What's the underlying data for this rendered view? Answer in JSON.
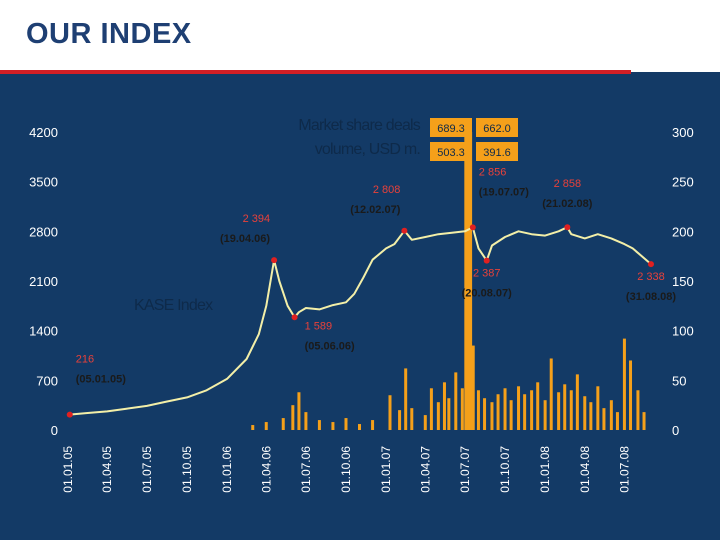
{
  "page": {
    "title": "OUR INDEX"
  },
  "colors": {
    "background": "#133a66",
    "index_line": "#f3efa8",
    "volume_bars": "#f5a01a",
    "marker": "#e02020",
    "annotation_text": "#e8413a",
    "axis_text": "#ffffff",
    "title_text": "#1e3f73",
    "title_rule": "#d21f26"
  },
  "chart_data": {
    "type": "line",
    "title": "",
    "series": [
      {
        "name": "KASE Index",
        "axis": "left",
        "type": "line"
      },
      {
        "name": "Market share deals volume, USD m.",
        "axis": "right",
        "type": "bar"
      }
    ],
    "series_labels": {
      "index": "KASE Index",
      "volume_line1": "Market share deals",
      "volume_line2": "volume, USD m."
    },
    "y_left": {
      "ticks": [
        "0",
        "700",
        "1400",
        "2100",
        "2800",
        "3500",
        "4200"
      ],
      "range": [
        0,
        4200
      ]
    },
    "y_right": {
      "ticks": [
        "0",
        "50",
        "100",
        "150",
        "200",
        "250",
        "300"
      ],
      "range": [
        0,
        300
      ]
    },
    "x_ticks": [
      "01.01.05",
      "01.04.05",
      "01.07.05",
      "01.10.05",
      "01.01.06",
      "01.04.06",
      "01.07.06",
      "01.10.06",
      "01.01.07",
      "01.04.07",
      "01.07.07",
      "01.10.07",
      "01.01.08",
      "01.04.08",
      "01.07.08"
    ],
    "index_points": [
      [
        "01.01.05",
        216
      ],
      [
        "15.02.05",
        240
      ],
      [
        "01.04.05",
        262
      ],
      [
        "15.05.05",
        300
      ],
      [
        "01.07.05",
        340
      ],
      [
        "15.08.05",
        400
      ],
      [
        "01.10.05",
        460
      ],
      [
        "15.11.05",
        560
      ],
      [
        "01.01.06",
        720
      ],
      [
        "15.02.06",
        1000
      ],
      [
        "15.03.06",
        1350
      ],
      [
        "01.04.06",
        1750
      ],
      [
        "19.04.06",
        2394
      ],
      [
        "01.05.06",
        2100
      ],
      [
        "20.05.06",
        1750
      ],
      [
        "05.06.06",
        1589
      ],
      [
        "15.06.06",
        1660
      ],
      [
        "01.07.06",
        1720
      ],
      [
        "01.08.06",
        1700
      ],
      [
        "01.09.06",
        1760
      ],
      [
        "01.10.06",
        1800
      ],
      [
        "20.10.06",
        1920
      ],
      [
        "10.11.06",
        2150
      ],
      [
        "01.12.06",
        2400
      ],
      [
        "01.01.07",
        2560
      ],
      [
        "20.01.07",
        2620
      ],
      [
        "12.02.07",
        2808
      ],
      [
        "01.03.07",
        2680
      ],
      [
        "01.04.07",
        2720
      ],
      [
        "01.05.07",
        2760
      ],
      [
        "01.06.07",
        2780
      ],
      [
        "01.07.07",
        2800
      ],
      [
        "19.07.07",
        2856
      ],
      [
        "01.08.07",
        2560
      ],
      [
        "20.08.07",
        2387
      ],
      [
        "01.09.07",
        2600
      ],
      [
        "01.10.07",
        2720
      ],
      [
        "01.11.07",
        2800
      ],
      [
        "01.12.07",
        2760
      ],
      [
        "01.01.08",
        2740
      ],
      [
        "01.02.08",
        2800
      ],
      [
        "21.02.08",
        2858
      ],
      [
        "01.03.08",
        2760
      ],
      [
        "01.04.08",
        2700
      ],
      [
        "01.05.08",
        2760
      ],
      [
        "01.06.08",
        2700
      ],
      [
        "01.07.08",
        2620
      ],
      [
        "20.07.08",
        2560
      ],
      [
        "31.08.08",
        2338
      ]
    ],
    "annotations": [
      {
        "value": "216",
        "date": "(05.01.05)",
        "x": "05.01.05",
        "y": 216,
        "position": "above-right"
      },
      {
        "value": "2 394",
        "date": "(19.04.06)",
        "x": "19.04.06",
        "y": 2394,
        "position": "above-left"
      },
      {
        "value": "1 589",
        "date": "(05.06.06)",
        "x": "05.06.06",
        "y": 1589,
        "position": "below-right"
      },
      {
        "value": "2 808",
        "date": "(12.02.07)",
        "x": "12.02.07",
        "y": 2808,
        "position": "above-left"
      },
      {
        "value": "2 856",
        "date": "(19.07.07)",
        "x": "19.07.07",
        "y": 2856,
        "position": "above-right"
      },
      {
        "value": "2 387",
        "date": "(20.08.07)",
        "x": "20.08.07",
        "y": 2387,
        "position": "below"
      },
      {
        "value": "2 858",
        "date": "(21.02.08)",
        "x": "21.02.08",
        "y": 2858,
        "position": "above"
      },
      {
        "value": "2 338",
        "date": "(31.08.08)",
        "x": "31.08.08",
        "y": 2338,
        "position": "below"
      }
    ],
    "volume_callouts": [
      {
        "value": "689.3",
        "date": "07.07"
      },
      {
        "value": "662.0",
        "date": "07.07"
      },
      {
        "value": "503.3",
        "date": "07.07"
      },
      {
        "value": "391.6",
        "date": "07.07"
      }
    ],
    "volume_bars": [
      [
        "01.03.06",
        5
      ],
      [
        "01.04.06",
        8
      ],
      [
        "10.05.06",
        12
      ],
      [
        "01.06.06",
        25
      ],
      [
        "15.06.06",
        38
      ],
      [
        "01.07.06",
        18
      ],
      [
        "01.08.06",
        10
      ],
      [
        "01.09.06",
        8
      ],
      [
        "01.10.06",
        12
      ],
      [
        "01.11.06",
        6
      ],
      [
        "01.12.06",
        10
      ],
      [
        "10.01.07",
        35
      ],
      [
        "01.02.07",
        20
      ],
      [
        "15.02.07",
        62
      ],
      [
        "01.03.07",
        22
      ],
      [
        "01.04.07",
        15
      ],
      [
        "15.04.07",
        42
      ],
      [
        "01.05.07",
        28
      ],
      [
        "15.05.07",
        48
      ],
      [
        "25.05.07",
        32
      ],
      [
        "10.06.07",
        58
      ],
      [
        "25.06.07",
        42
      ],
      [
        "03.07.07",
        300
      ],
      [
        "05.07.07",
        300
      ],
      [
        "10.07.07",
        300
      ],
      [
        "14.07.07",
        300
      ],
      [
        "20.07.07",
        85
      ],
      [
        "01.08.07",
        40
      ],
      [
        "15.08.07",
        32
      ],
      [
        "01.09.07",
        28
      ],
      [
        "15.09.07",
        36
      ],
      [
        "01.10.07",
        42
      ],
      [
        "15.10.07",
        30
      ],
      [
        "01.11.07",
        44
      ],
      [
        "15.11.07",
        36
      ],
      [
        "01.12.07",
        40
      ],
      [
        "15.12.07",
        48
      ],
      [
        "01.01.08",
        30
      ],
      [
        "15.01.08",
        72
      ],
      [
        "01.02.08",
        38
      ],
      [
        "15.02.08",
        46
      ],
      [
        "01.03.08",
        40
      ],
      [
        "15.03.08",
        56
      ],
      [
        "01.04.08",
        34
      ],
      [
        "15.04.08",
        28
      ],
      [
        "01.05.08",
        44
      ],
      [
        "15.05.08",
        22
      ],
      [
        "01.06.08",
        30
      ],
      [
        "15.06.08",
        18
      ],
      [
        "01.07.08",
        92
      ],
      [
        "15.07.08",
        70
      ],
      [
        "01.08.08",
        40
      ],
      [
        "15.08.08",
        18
      ]
    ]
  }
}
